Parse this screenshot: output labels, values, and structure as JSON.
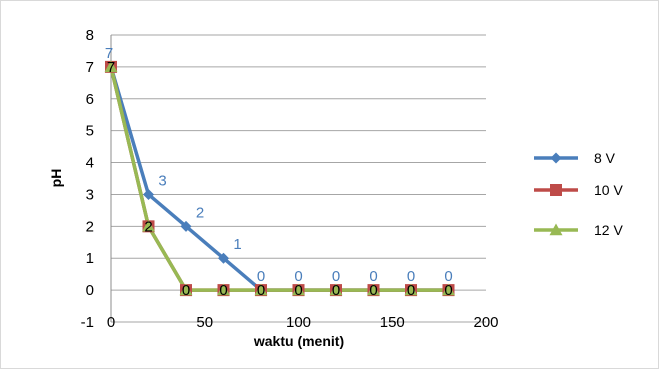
{
  "chart_data": {
    "type": "line",
    "title": "",
    "xlabel": "waktu (menit)",
    "ylabel": "pH",
    "xlim": [
      0,
      200
    ],
    "ylim": [
      -1,
      8
    ],
    "x_ticks": [
      "0",
      "50",
      "100",
      "150",
      "200"
    ],
    "y_ticks": [
      "-1",
      "0",
      "1",
      "2",
      "3",
      "4",
      "5",
      "6",
      "7",
      "8"
    ],
    "grid": "horizontal",
    "legend_position": "right",
    "x": [
      0,
      20,
      40,
      60,
      80,
      100,
      120,
      140,
      160,
      180
    ],
    "series": [
      {
        "name": "8 V",
        "color": "#4a7ebb",
        "marker": "diamond",
        "values": [
          7,
          3,
          2,
          1,
          0,
          0,
          0,
          0,
          0,
          0
        ],
        "labels": [
          "7",
          "3",
          "2",
          "1",
          "0",
          "0",
          "0",
          "0",
          "0",
          "0"
        ]
      },
      {
        "name": "10 V",
        "color": "#be4b48",
        "marker": "square",
        "values": [
          7,
          2,
          0,
          0,
          0,
          0,
          0,
          0,
          0,
          0
        ],
        "labels": [
          "7",
          "2",
          "0",
          "0",
          "0",
          "0",
          "0",
          "0",
          "0",
          "0"
        ]
      },
      {
        "name": "12 V",
        "color": "#98b954",
        "marker": "triangle",
        "values": [
          7,
          2,
          0,
          0,
          0,
          0,
          0,
          0,
          0,
          0
        ],
        "labels": []
      }
    ]
  }
}
